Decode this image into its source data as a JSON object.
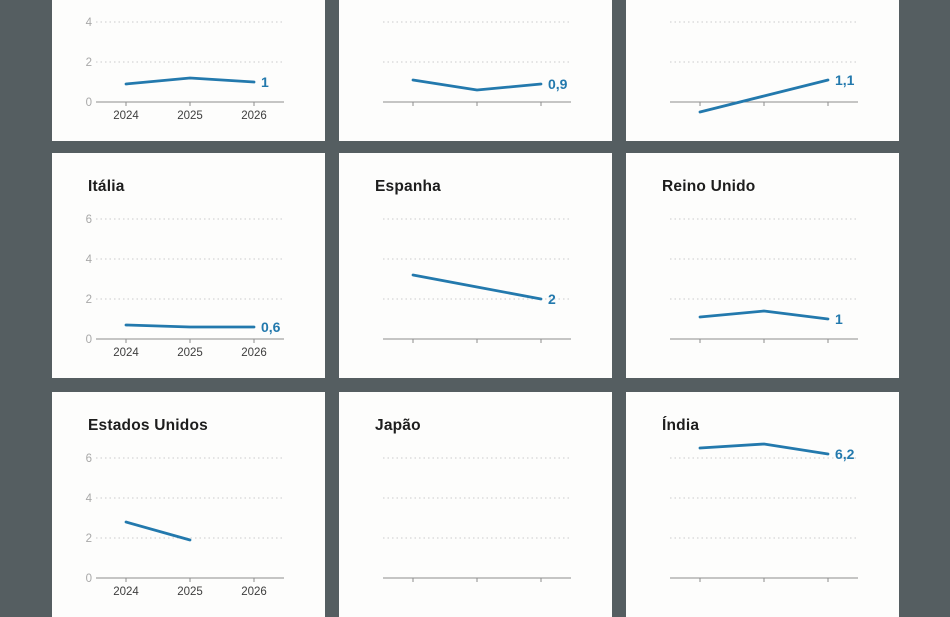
{
  "chart_data": {
    "type": "line",
    "layout": "small-multiples-3x3",
    "x": [
      2024,
      2025,
      2026
    ],
    "x_tick_labels": [
      "2024",
      "2025",
      "2026"
    ],
    "y_axis": {
      "ticks": [
        0,
        2,
        4,
        6
      ],
      "tick_labels": [
        "0",
        "2",
        "4",
        "6"
      ],
      "gridlines": [
        2,
        4,
        6
      ],
      "range": [
        0,
        7
      ],
      "grid": "dotted",
      "labels_only_on_left_column": true
    },
    "line_color": "#2379ad",
    "value_label_color": "#2379ad",
    "panels": [
      {
        "title": "",
        "values": [
          0.9,
          1.2,
          1.0
        ],
        "end_label": "1"
      },
      {
        "title": "",
        "values": [
          1.1,
          0.6,
          0.9
        ],
        "end_label": "0,9"
      },
      {
        "title": "",
        "values": [
          -0.5,
          0.3,
          1.1
        ],
        "end_label": "1,1"
      },
      {
        "title": "Itália",
        "values": [
          0.7,
          0.6,
          0.6
        ],
        "end_label": "0,6"
      },
      {
        "title": "Espanha",
        "values": [
          3.2,
          2.6,
          2.0
        ],
        "end_label": "2"
      },
      {
        "title": "Reino Unido",
        "values": [
          1.1,
          1.4,
          1.0
        ],
        "end_label": "1"
      },
      {
        "title": "Estados Unidos",
        "values": [
          2.8,
          1.9,
          null
        ],
        "end_label": null
      },
      {
        "title": "Japão",
        "values": [
          null,
          null,
          null
        ],
        "end_label": null
      },
      {
        "title": "Índia",
        "values": [
          6.5,
          6.7,
          6.2
        ],
        "end_label": "6,2"
      }
    ]
  },
  "colors": {
    "background": "#555e61",
    "panel_background": "#fdfdfc",
    "line": "#2379ad",
    "gridline": "#cbcbcb",
    "axis": "#8d8d8d",
    "y_tick_label": "#a8a8a8",
    "x_tick_label": "#3e3e3e",
    "title": "#1d1d1d"
  }
}
